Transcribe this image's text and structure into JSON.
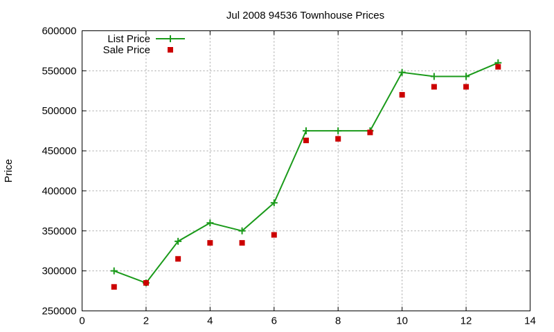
{
  "chart_data": {
    "type": "line",
    "title": "Jul 2008 94536 Townhouse Prices",
    "xlabel": "",
    "ylabel": "Price",
    "xlim": [
      0,
      14
    ],
    "ylim": [
      250000,
      600000
    ],
    "x_ticks": [
      0,
      2,
      4,
      6,
      8,
      10,
      12,
      14
    ],
    "y_ticks": [
      250000,
      300000,
      350000,
      400000,
      450000,
      500000,
      550000,
      600000
    ],
    "grid": true,
    "legend_position": "top-left",
    "series": [
      {
        "name": "List Price",
        "style": "line-with-plus-markers",
        "color": "#1a9a1a",
        "x": [
          1,
          2,
          3,
          4,
          5,
          6,
          7,
          8,
          9,
          10,
          11,
          12,
          13
        ],
        "values": [
          300000,
          285000,
          337000,
          360000,
          350000,
          385000,
          475000,
          475000,
          475000,
          548000,
          543000,
          543000,
          560000
        ]
      },
      {
        "name": "Sale Price",
        "style": "square-markers",
        "color": "#cc0000",
        "x": [
          1,
          2,
          3,
          4,
          5,
          6,
          7,
          8,
          9,
          10,
          11,
          12,
          13
        ],
        "values": [
          280000,
          285000,
          315000,
          335000,
          335000,
          345000,
          463000,
          465000,
          473000,
          520000,
          530000,
          530000,
          555000
        ]
      }
    ]
  }
}
